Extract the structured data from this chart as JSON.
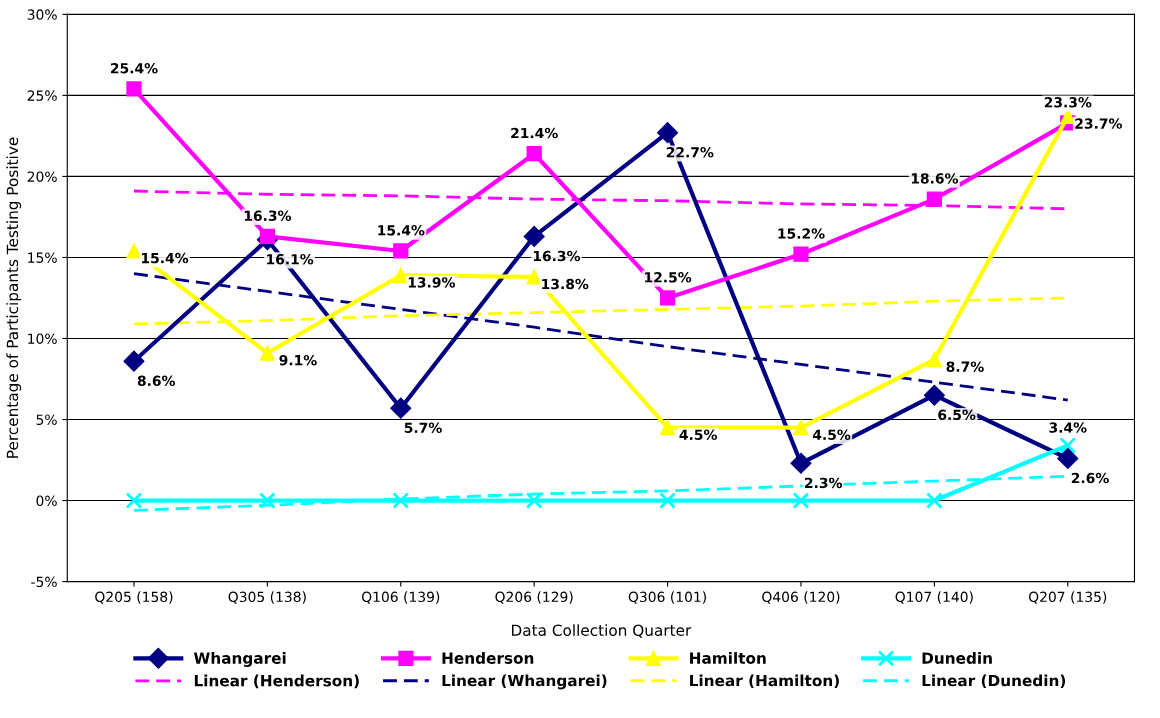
{
  "chart_data": {
    "type": "line",
    "xlabel": "Data Collection Quarter",
    "ylabel": "Percentage of Participants Testing Positive",
    "categories": [
      "Q205 (158)",
      "Q305 (138)",
      "Q106 (139)",
      "Q206 (129)",
      "Q306 (101)",
      "Q406 (120)",
      "Q107 (140)",
      "Q207 (135)"
    ],
    "ylim": [
      -5,
      30
    ],
    "yticks": [
      {
        "value": -5,
        "label": "-5%"
      },
      {
        "value": 0,
        "label": "0%"
      },
      {
        "value": 5,
        "label": "5%"
      },
      {
        "value": 10,
        "label": "10%"
      },
      {
        "value": 15,
        "label": "15%"
      },
      {
        "value": 20,
        "label": "20%"
      },
      {
        "value": 25,
        "label": "25%"
      },
      {
        "value": 30,
        "label": "30%"
      }
    ],
    "grid": "y",
    "legend": "bottom",
    "series": [
      {
        "name": "Whangarei",
        "color": "#000080",
        "marker": "diamond",
        "line_style": "solid",
        "values": [
          8.6,
          16.1,
          5.7,
          16.3,
          22.7,
          2.3,
          6.5,
          2.6
        ],
        "value_labels": [
          "8.6%",
          "16.1%",
          "5.7%",
          "16.3%",
          "22.7%",
          "2.3%",
          "6.5%",
          "2.6%"
        ]
      },
      {
        "name": "Henderson",
        "color": "#ff00ff",
        "marker": "square",
        "line_style": "solid",
        "values": [
          25.4,
          16.3,
          15.4,
          21.4,
          12.5,
          15.2,
          18.6,
          23.3
        ],
        "value_labels": [
          "25.4%",
          "16.3%",
          "15.4%",
          "21.4%",
          "12.5%",
          "15.2%",
          "18.6%",
          "23.3%"
        ]
      },
      {
        "name": "Hamilton",
        "color": "#ffff00",
        "marker": "triangle",
        "line_style": "solid",
        "values": [
          15.4,
          9.1,
          13.9,
          13.8,
          4.5,
          4.5,
          8.7,
          23.7
        ],
        "value_labels": [
          "15.4%",
          "9.1%",
          "13.9%",
          "13.8%",
          "4.5%",
          "4.5%",
          "8.7%",
          "23.7%"
        ]
      },
      {
        "name": "Dunedin",
        "color": "#00ffff",
        "marker": "cross",
        "line_style": "solid",
        "values": [
          0,
          0,
          0,
          0,
          0,
          0,
          0,
          3.4
        ],
        "value_labels": [
          null,
          null,
          null,
          null,
          null,
          null,
          null,
          "3.4%"
        ]
      },
      {
        "name": "Linear (Henderson)",
        "color": "#ff00ff",
        "marker": "none",
        "line_style": "dashed",
        "values": [
          19.1,
          18.9,
          18.8,
          18.6,
          18.5,
          18.3,
          18.2,
          18.0
        ]
      },
      {
        "name": "Linear (Whangarei)",
        "color": "#000080",
        "marker": "none",
        "line_style": "dashed",
        "values": [
          14.0,
          12.9,
          11.8,
          10.7,
          9.5,
          8.4,
          7.3,
          6.2
        ]
      },
      {
        "name": "Linear (Hamilton)",
        "color": "#ffff00",
        "marker": "none",
        "line_style": "dashed",
        "values": [
          10.9,
          11.1,
          11.4,
          11.6,
          11.8,
          12.0,
          12.3,
          12.5
        ]
      },
      {
        "name": "Linear (Dunedin)",
        "color": "#00ffff",
        "marker": "none",
        "line_style": "dashed",
        "values": [
          -0.6,
          -0.3,
          0.1,
          0.4,
          0.6,
          0.9,
          1.2,
          1.5
        ]
      }
    ]
  }
}
